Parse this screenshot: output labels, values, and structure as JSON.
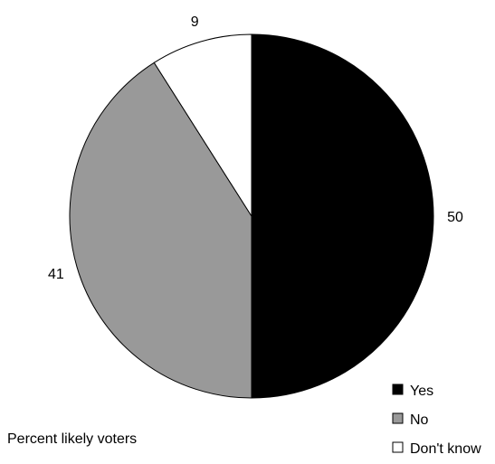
{
  "chart_data": {
    "type": "pie",
    "categories": [
      "Yes",
      "No",
      "Don't know"
    ],
    "values": [
      50,
      41,
      9
    ],
    "colors": [
      "#000000",
      "#999999",
      "#ffffff"
    ],
    "start": "12 o'clock, clockwise",
    "legend_position": "bottom-right",
    "note": "Percent likely voters"
  }
}
